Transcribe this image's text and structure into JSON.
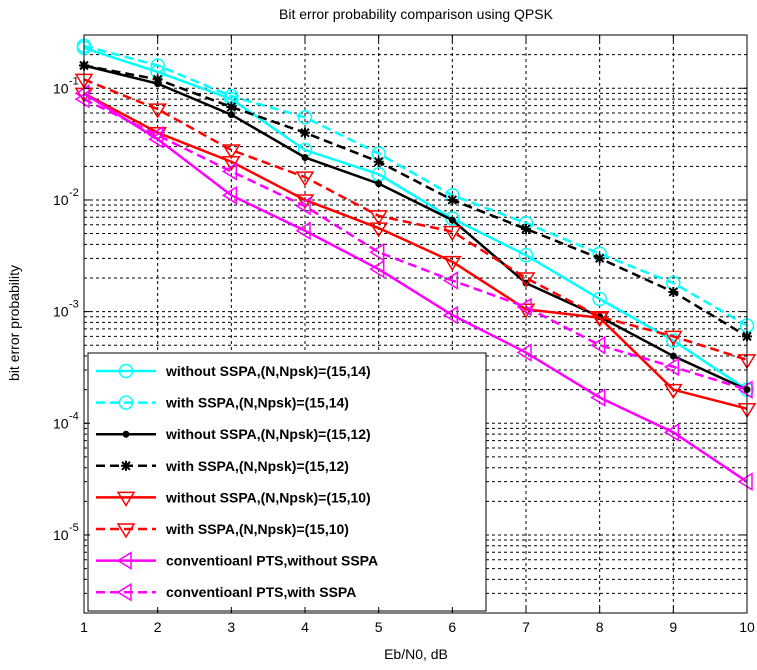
{
  "chart_data": {
    "type": "line",
    "title": "Bit error probability comparison using QPSK",
    "xlabel": "Eb/N0, dB",
    "ylabel": "bit error probability",
    "xlim": [
      1,
      10
    ],
    "ylim": [
      2e-06,
      0.3
    ],
    "yscale": "log",
    "grid": true,
    "legend_position": "bottom-left",
    "x": [
      1,
      2,
      3,
      4,
      5,
      6,
      7,
      8,
      9,
      10
    ],
    "x_ticks": [
      "1",
      "2",
      "3",
      "4",
      "5",
      "6",
      "7",
      "8",
      "9",
      "10"
    ],
    "y_ticks": [
      {
        "base": "10",
        "exp": "-1",
        "value": 0.1
      },
      {
        "base": "10",
        "exp": "-2",
        "value": 0.01
      },
      {
        "base": "10",
        "exp": "-3",
        "value": 0.001
      },
      {
        "base": "10",
        "exp": "-4",
        "value": 0.0001
      },
      {
        "base": "10",
        "exp": "-5",
        "value": 1e-05
      }
    ],
    "series": [
      {
        "name": "without SSPA,(N,Npsk)=(15,14)",
        "color": "#00ffff",
        "dash": "solid",
        "marker": "circle",
        "values": [
          0.23,
          0.14,
          0.08,
          0.028,
          0.017,
          0.0068,
          0.0032,
          0.0013,
          0.00055,
          0.0002
        ]
      },
      {
        "name": "with SSPA,(N,Npsk)=(15,14)",
        "color": "#00ffff",
        "dash": "dashed",
        "marker": "circle",
        "values": [
          0.24,
          0.16,
          0.085,
          0.055,
          0.026,
          0.011,
          0.0062,
          0.0033,
          0.0018,
          0.00075
        ]
      },
      {
        "name": "without SSPA,(N,Npsk)=(15,12)",
        "color": "#000000",
        "dash": "solid",
        "marker": "dot",
        "values": [
          0.16,
          0.11,
          0.058,
          0.024,
          0.014,
          0.0066,
          0.0018,
          0.0009,
          0.0004,
          0.0002
        ]
      },
      {
        "name": "with SSPA,(N,Npsk)=(15,12)",
        "color": "#000000",
        "dash": "dashed",
        "marker": "star",
        "values": [
          0.16,
          0.12,
          0.068,
          0.04,
          0.022,
          0.01,
          0.0055,
          0.003,
          0.0015,
          0.0006
        ]
      },
      {
        "name": "without SSPA,(N,Npsk)=(15,10)",
        "color": "#ff0000",
        "dash": "solid",
        "marker": "triangle-down",
        "values": [
          0.09,
          0.04,
          0.022,
          0.01,
          0.0056,
          0.0028,
          0.00105,
          0.00088,
          0.0002,
          0.000135
        ]
      },
      {
        "name": "with SSPA,(N,Npsk)=(15,10)",
        "color": "#ff0000",
        "dash": "dashed",
        "marker": "triangle-down",
        "values": [
          0.12,
          0.065,
          0.028,
          0.016,
          0.0072,
          0.0052,
          0.002,
          0.0009,
          0.0006,
          0.00037
        ]
      },
      {
        "name": "conventioanl PTS,without SSPA",
        "color": "#ff00ff",
        "dash": "solid",
        "marker": "triangle-left",
        "values": [
          0.09,
          0.035,
          0.011,
          0.0053,
          0.0024,
          0.00093,
          0.00043,
          0.00017,
          8.3e-05,
          3e-05
        ]
      },
      {
        "name": "conventioanl PTS,with SSPA",
        "color": "#ff00ff",
        "dash": "dashed",
        "marker": "triangle-left",
        "values": [
          0.08,
          0.038,
          0.018,
          0.0088,
          0.0034,
          0.0019,
          0.0011,
          0.0005,
          0.00032,
          0.0002
        ]
      }
    ]
  }
}
